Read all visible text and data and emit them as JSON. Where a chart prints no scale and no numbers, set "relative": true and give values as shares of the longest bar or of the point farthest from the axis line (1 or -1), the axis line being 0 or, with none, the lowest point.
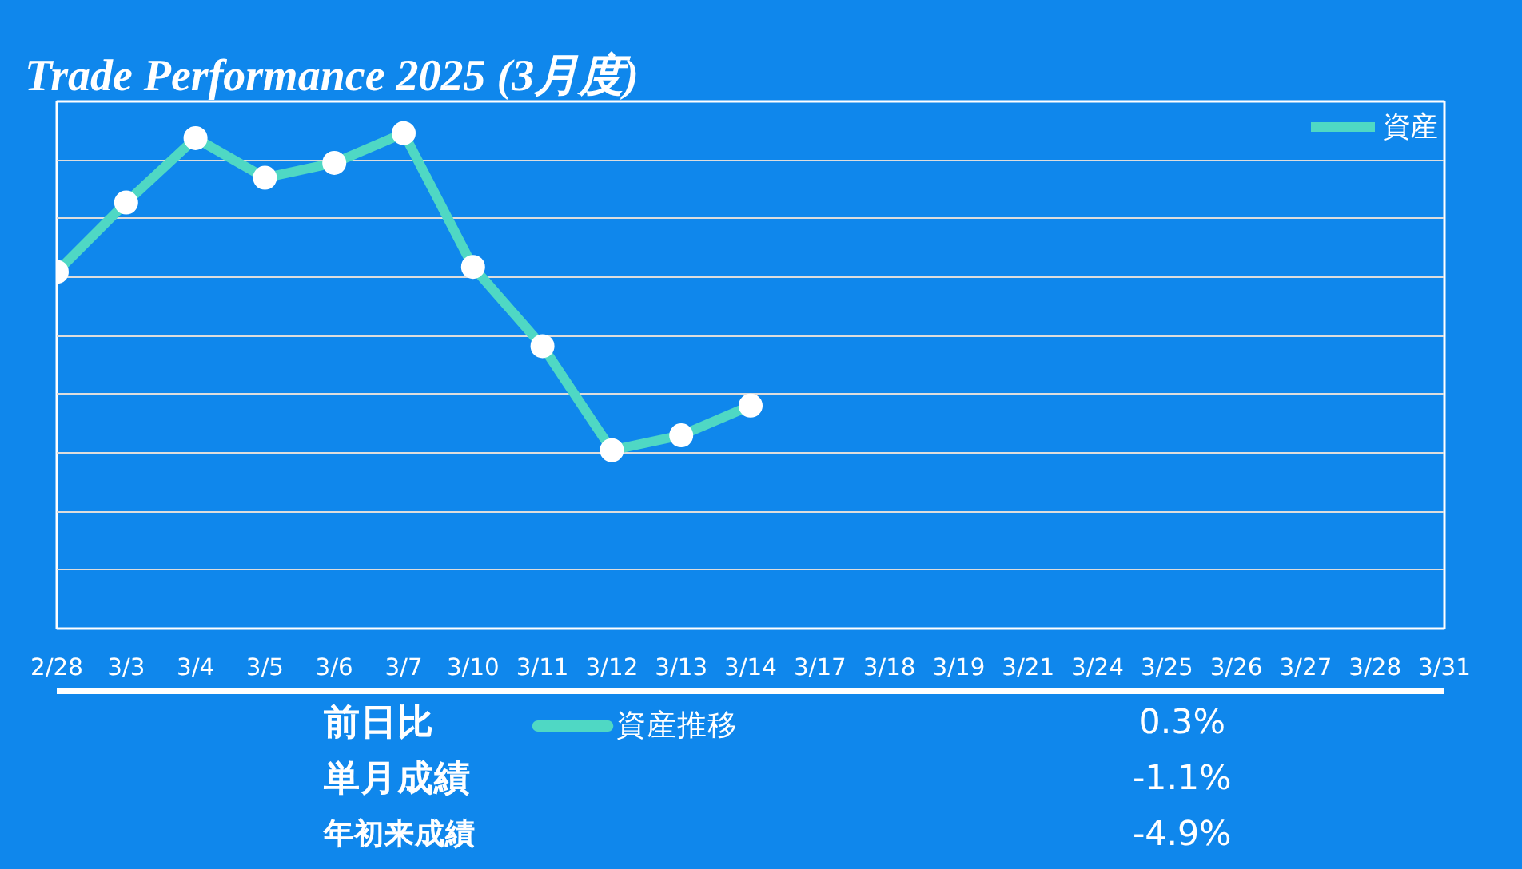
{
  "chart_data": [
    {
      "type": "line",
      "title": "Trade Performance 2025 (3月度)",
      "relative": true,
      "categories": [
        "2/28",
        "3/3",
        "3/4",
        "3/5",
        "3/6",
        "3/7",
        "3/10",
        "3/11",
        "3/12",
        "3/13",
        "3/14",
        "3/17",
        "3/18",
        "3/19",
        "3/21",
        "3/24",
        "3/25",
        "3/26",
        "3/27",
        "3/28",
        "3/31"
      ],
      "series": [
        {
          "name": "資産",
          "color": "#4fd8c4",
          "values": [
            0.72,
            0.86,
            0.99,
            0.91,
            0.94,
            1,
            0.73,
            0.57,
            0.36,
            0.39,
            0.45,
            null,
            null,
            null,
            null,
            null,
            null,
            null,
            null,
            null,
            null
          ]
        }
      ],
      "grid": "y",
      "legend": "top right",
      "marker": "circle",
      "line_style": "solid"
    },
    {
      "type": "other",
      "annotations": [
        "前日比",
        "0.3%",
        "単月成績",
        "-1.1%",
        "年初来成績",
        "-4.9%",
        "資産推移"
      ]
    }
  ]
}
